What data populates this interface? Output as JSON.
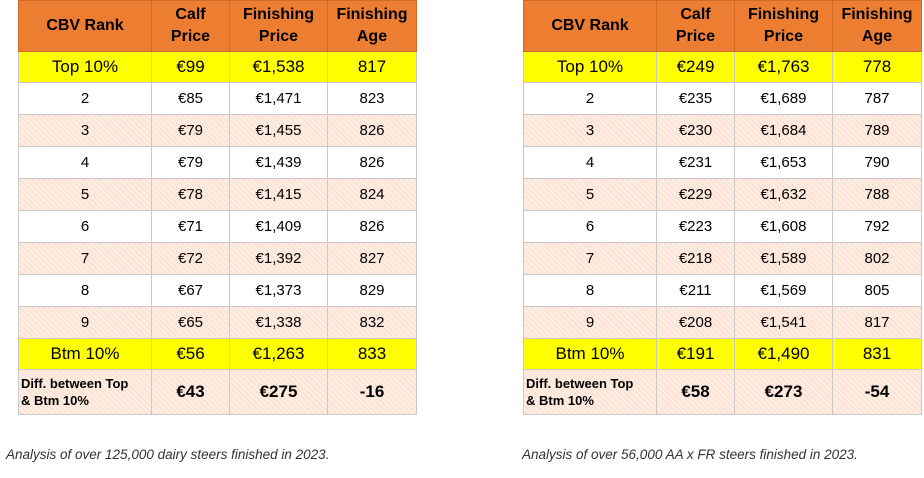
{
  "headers": [
    [
      "CBV Rank"
    ],
    [
      "Calf",
      "Price"
    ],
    [
      "Finishing",
      "Price"
    ],
    [
      "Finishing",
      "Age"
    ]
  ],
  "tables": [
    {
      "rows": [
        [
          "Top 10%",
          "€99",
          "€1,538",
          "817"
        ],
        [
          "2",
          "€85",
          "€1,471",
          "823"
        ],
        [
          "3",
          "€79",
          "€1,455",
          "826"
        ],
        [
          "4",
          "€79",
          "€1,439",
          "826"
        ],
        [
          "5",
          "€78",
          "€1,415",
          "824"
        ],
        [
          "6",
          "€71",
          "€1,409",
          "826"
        ],
        [
          "7",
          "€72",
          "€1,392",
          "827"
        ],
        [
          "8",
          "€67",
          "€1,373",
          "829"
        ],
        [
          "9",
          "€65",
          "€1,338",
          "832"
        ],
        [
          "Btm 10%",
          "€56",
          "€1,263",
          "833"
        ]
      ],
      "diff": {
        "label_line1": "Diff. between Top",
        "label_line2": "& Btm 10%",
        "values": [
          "€43",
          "€275",
          "-16"
        ]
      },
      "caption": "Analysis of over 125,000 dairy steers finished in 2023."
    },
    {
      "rows": [
        [
          "Top 10%",
          "€249",
          "€1,763",
          "778"
        ],
        [
          "2",
          "€235",
          "€1,689",
          "787"
        ],
        [
          "3",
          "€230",
          "€1,684",
          "789"
        ],
        [
          "4",
          "€231",
          "€1,653",
          "790"
        ],
        [
          "5",
          "€229",
          "€1,632",
          "788"
        ],
        [
          "6",
          "€223",
          "€1,608",
          "792"
        ],
        [
          "7",
          "€218",
          "€1,589",
          "802"
        ],
        [
          "8",
          "€211",
          "€1,569",
          "805"
        ],
        [
          "9",
          "€208",
          "€1,541",
          "817"
        ],
        [
          "Btm 10%",
          "€191",
          "€1,490",
          "831"
        ]
      ],
      "diff": {
        "label_line1": "Diff. between Top",
        "label_line2": "& Btm 10%",
        "values": [
          "€58",
          "€273",
          "-54"
        ]
      },
      "caption": "Analysis of over 56,000 AA x FR steers finished in 2023."
    }
  ],
  "colors": {
    "header": "#ed7d31",
    "highlight": "#ffff00",
    "stripe": "#fce4d6"
  }
}
